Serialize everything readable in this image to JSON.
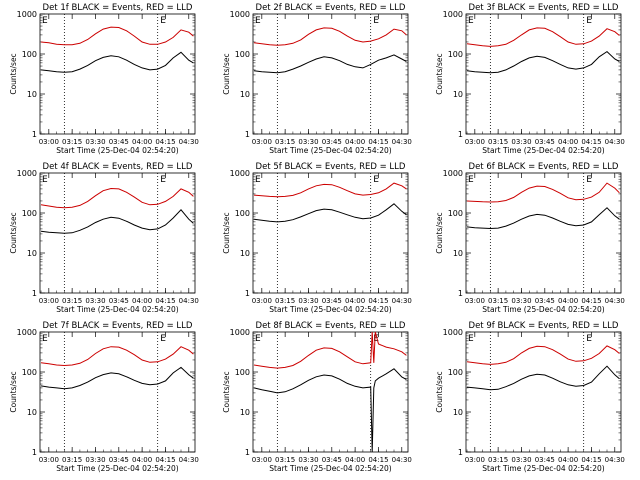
{
  "figure": {
    "x_tick_labels": [
      "03:00",
      "03:15",
      "03:30",
      "03:45",
      "04:00",
      "04:15",
      "04:30"
    ],
    "x_label": "Start Time (25-Dec-04 02:54:20)",
    "y_label": "Counts/sec",
    "y_tick_labels": [
      "1",
      "10",
      "100",
      "1000"
    ],
    "flag_labels": [
      "E",
      "E"
    ],
    "colors": {
      "events": "#000000",
      "lld": "#cc0000",
      "axes": "#000000",
      "background": "#ffffff"
    }
  },
  "chart_data": [
    {
      "type": "line",
      "title": "Det 1f BLACK = Events, RED = LLD",
      "xlabel": "Start Time (25-Dec-04 02:54:20)",
      "ylabel": "Counts/sec",
      "x_range": [
        "02:54:20",
        "04:34:00"
      ],
      "y_scale": "log",
      "ylim": [
        1,
        1000
      ],
      "x_ticks": [
        "03:00",
        "03:15",
        "03:30",
        "03:45",
        "04:00",
        "04:15",
        "04:30"
      ],
      "y_ticks": [
        1,
        10,
        100,
        1000
      ],
      "markers": [
        "03:10",
        "04:10"
      ],
      "flags": [
        {
          "label": "E",
          "at": "02:55"
        },
        {
          "label": "E",
          "at": "04:11"
        }
      ],
      "x": [
        "02:55",
        "03:00",
        "03:05",
        "03:10",
        "03:15",
        "03:20",
        "03:25",
        "03:30",
        "03:35",
        "03:40",
        "03:45",
        "03:50",
        "03:55",
        "04:00",
        "04:05",
        "04:10",
        "04:15",
        "04:20",
        "04:25",
        "04:30",
        "04:33"
      ],
      "series": [
        {
          "name": "Events",
          "color": "black",
          "values": [
            40,
            38,
            36,
            35,
            36,
            42,
            52,
            68,
            82,
            90,
            85,
            70,
            55,
            45,
            40,
            42,
            52,
            80,
            110,
            70,
            60
          ]
        },
        {
          "name": "LLD",
          "color": "red",
          "values": [
            200,
            190,
            175,
            170,
            170,
            185,
            230,
            320,
            420,
            470,
            460,
            380,
            280,
            200,
            175,
            175,
            200,
            260,
            400,
            350,
            280
          ]
        }
      ]
    },
    {
      "type": "line",
      "title": "Det 2f BLACK = Events, RED = LLD",
      "xlabel": "Start Time (25-Dec-04 02:54:20)",
      "ylabel": "Counts/sec",
      "x_range": [
        "02:54:20",
        "04:34:00"
      ],
      "y_scale": "log",
      "ylim": [
        1,
        1000
      ],
      "x_ticks": [
        "03:00",
        "03:15",
        "03:30",
        "03:45",
        "04:00",
        "04:15",
        "04:30"
      ],
      "y_ticks": [
        1,
        10,
        100,
        1000
      ],
      "markers": [
        "03:10",
        "04:10"
      ],
      "flags": [
        {
          "label": "E",
          "at": "02:55"
        },
        {
          "label": "E",
          "at": "04:11"
        }
      ],
      "x": [
        "02:55",
        "03:00",
        "03:05",
        "03:10",
        "03:15",
        "03:20",
        "03:25",
        "03:30",
        "03:35",
        "03:40",
        "03:45",
        "03:50",
        "03:55",
        "04:00",
        "04:05",
        "04:10",
        "04:15",
        "04:20",
        "04:25",
        "04:30",
        "04:33"
      ],
      "series": [
        {
          "name": "Events",
          "color": "black",
          "values": [
            38,
            36,
            35,
            34,
            36,
            42,
            50,
            62,
            75,
            85,
            80,
            68,
            55,
            48,
            45,
            55,
            70,
            80,
            95,
            75,
            65
          ]
        },
        {
          "name": "LLD",
          "color": "red",
          "values": [
            190,
            180,
            170,
            165,
            170,
            185,
            225,
            310,
            400,
            450,
            440,
            370,
            280,
            220,
            200,
            210,
            240,
            300,
            420,
            380,
            300
          ]
        }
      ]
    },
    {
      "type": "line",
      "title": "Det 3f BLACK = Events, RED = LLD",
      "xlabel": "Start Time (25-Dec-04 02:54:20)",
      "ylabel": "Counts/sec",
      "x_range": [
        "02:54:20",
        "04:34:00"
      ],
      "y_scale": "log",
      "ylim": [
        1,
        1000
      ],
      "x_ticks": [
        "03:00",
        "03:15",
        "03:30",
        "03:45",
        "04:00",
        "04:15",
        "04:30"
      ],
      "y_ticks": [
        1,
        10,
        100,
        1000
      ],
      "markers": [
        "03:10",
        "04:10"
      ],
      "flags": [
        {
          "label": "E",
          "at": "02:55"
        },
        {
          "label": "E",
          "at": "04:11"
        }
      ],
      "x": [
        "02:55",
        "03:00",
        "03:05",
        "03:10",
        "03:15",
        "03:20",
        "03:25",
        "03:30",
        "03:35",
        "03:40",
        "03:45",
        "03:50",
        "03:55",
        "04:00",
        "04:05",
        "04:10",
        "04:15",
        "04:20",
        "04:25",
        "04:30",
        "04:33"
      ],
      "series": [
        {
          "name": "Events",
          "color": "black",
          "values": [
            38,
            36,
            35,
            34,
            35,
            40,
            50,
            65,
            80,
            88,
            82,
            68,
            55,
            45,
            42,
            45,
            55,
            85,
            115,
            75,
            65
          ]
        },
        {
          "name": "LLD",
          "color": "red",
          "values": [
            180,
            170,
            160,
            155,
            160,
            175,
            220,
            300,
            400,
            450,
            440,
            360,
            270,
            200,
            175,
            180,
            210,
            280,
            430,
            360,
            290
          ]
        }
      ]
    },
    {
      "type": "line",
      "title": "Det 4f BLACK = Events, RED = LLD",
      "xlabel": "Start Time (25-Dec-04 02:54:20)",
      "ylabel": "Counts/sec",
      "x_range": [
        "02:54:20",
        "04:34:00"
      ],
      "y_scale": "log",
      "ylim": [
        1,
        1000
      ],
      "x_ticks": [
        "03:00",
        "03:15",
        "03:30",
        "03:45",
        "04:00",
        "04:15",
        "04:30"
      ],
      "y_ticks": [
        1,
        10,
        100,
        1000
      ],
      "markers": [
        "03:10",
        "04:10"
      ],
      "flags": [
        {
          "label": "E",
          "at": "02:55"
        },
        {
          "label": "E",
          "at": "04:11"
        }
      ],
      "x": [
        "02:55",
        "03:00",
        "03:05",
        "03:10",
        "03:15",
        "03:20",
        "03:25",
        "03:30",
        "03:35",
        "03:40",
        "03:45",
        "03:50",
        "03:55",
        "04:00",
        "04:05",
        "04:10",
        "04:15",
        "04:20",
        "04:25",
        "04:30",
        "04:33"
      ],
      "series": [
        {
          "name": "Events",
          "color": "black",
          "values": [
            35,
            33,
            32,
            31,
            32,
            37,
            45,
            58,
            70,
            78,
            74,
            62,
            50,
            42,
            38,
            40,
            50,
            75,
            120,
            70,
            55
          ]
        },
        {
          "name": "LLD",
          "color": "red",
          "values": [
            160,
            150,
            140,
            135,
            140,
            155,
            195,
            270,
            360,
            410,
            400,
            330,
            250,
            185,
            160,
            165,
            195,
            260,
            400,
            330,
            260
          ]
        }
      ]
    },
    {
      "type": "line",
      "title": "Det 5f BLACK = Events, RED = LLD",
      "xlabel": "Start Time (25-Dec-04 02:54:20)",
      "ylabel": "Counts/sec",
      "x_range": [
        "02:54:20",
        "04:34:00"
      ],
      "y_scale": "log",
      "ylim": [
        1,
        1000
      ],
      "x_ticks": [
        "03:00",
        "03:15",
        "03:30",
        "03:45",
        "04:00",
        "04:15",
        "04:30"
      ],
      "y_ticks": [
        1,
        10,
        100,
        1000
      ],
      "markers": [
        "03:10",
        "04:10"
      ],
      "flags": [
        {
          "label": "E",
          "at": "02:55"
        },
        {
          "label": "E",
          "at": "04:11"
        }
      ],
      "x": [
        "02:55",
        "03:00",
        "03:05",
        "03:10",
        "03:15",
        "03:20",
        "03:25",
        "03:30",
        "03:35",
        "03:40",
        "03:45",
        "03:50",
        "03:55",
        "04:00",
        "04:05",
        "04:10",
        "04:15",
        "04:20",
        "04:25",
        "04:30",
        "04:33"
      ],
      "series": [
        {
          "name": "Events",
          "color": "black",
          "values": [
            70,
            66,
            62,
            60,
            62,
            68,
            80,
            96,
            115,
            125,
            120,
            105,
            90,
            78,
            72,
            75,
            88,
            120,
            170,
            110,
            90
          ]
        },
        {
          "name": "LLD",
          "color": "red",
          "values": [
            280,
            270,
            260,
            255,
            260,
            275,
            320,
            400,
            480,
            520,
            510,
            440,
            360,
            300,
            280,
            290,
            320,
            400,
            560,
            480,
            400
          ]
        }
      ]
    },
    {
      "type": "line",
      "title": "Det 6f BLACK = Events, RED = LLD",
      "xlabel": "Start Time (25-Dec-04 02:54:20)",
      "ylabel": "Counts/sec",
      "x_range": [
        "02:54:20",
        "04:34:00"
      ],
      "y_scale": "log",
      "ylim": [
        1,
        1000
      ],
      "x_ticks": [
        "03:00",
        "03:15",
        "03:30",
        "03:45",
        "04:00",
        "04:15",
        "04:30"
      ],
      "y_ticks": [
        1,
        10,
        100,
        1000
      ],
      "markers": [
        "03:10",
        "04:10"
      ],
      "flags": [
        {
          "label": "E",
          "at": "02:55"
        },
        {
          "label": "E",
          "at": "04:11"
        }
      ],
      "x": [
        "02:55",
        "03:00",
        "03:05",
        "03:10",
        "03:15",
        "03:20",
        "03:25",
        "03:30",
        "03:35",
        "03:40",
        "03:45",
        "03:50",
        "03:55",
        "04:00",
        "04:05",
        "04:10",
        "04:15",
        "04:20",
        "04:25",
        "04:30",
        "04:33"
      ],
      "series": [
        {
          "name": "Events",
          "color": "black",
          "values": [
            45,
            43,
            42,
            41,
            42,
            47,
            56,
            70,
            84,
            92,
            88,
            75,
            62,
            52,
            48,
            50,
            60,
            90,
            135,
            85,
            70
          ]
        },
        {
          "name": "LLD",
          "color": "red",
          "values": [
            200,
            195,
            190,
            188,
            190,
            205,
            245,
            330,
            420,
            470,
            460,
            390,
            310,
            240,
            215,
            220,
            250,
            330,
            560,
            420,
            320
          ]
        }
      ]
    },
    {
      "type": "line",
      "title": "Det 7f BLACK = Events, RED = LLD",
      "xlabel": "Start Time (25-Dec-04 02:54:20)",
      "ylabel": "Counts/sec",
      "x_range": [
        "02:54:20",
        "04:34:00"
      ],
      "y_scale": "log",
      "ylim": [
        1,
        1000
      ],
      "x_ticks": [
        "03:00",
        "03:15",
        "03:30",
        "03:45",
        "04:00",
        "04:15",
        "04:30"
      ],
      "y_ticks": [
        1,
        10,
        100,
        1000
      ],
      "markers": [
        "03:10",
        "04:10"
      ],
      "flags": [
        {
          "label": "E",
          "at": "02:55"
        },
        {
          "label": "E",
          "at": "04:11"
        }
      ],
      "x": [
        "02:55",
        "03:00",
        "03:05",
        "03:10",
        "03:15",
        "03:20",
        "03:25",
        "03:30",
        "03:35",
        "03:40",
        "03:45",
        "03:50",
        "03:55",
        "04:00",
        "04:05",
        "04:10",
        "04:15",
        "04:20",
        "04:25",
        "04:30",
        "04:33"
      ],
      "series": [
        {
          "name": "Events",
          "color": "black",
          "values": [
            45,
            42,
            40,
            38,
            40,
            46,
            56,
            72,
            86,
            95,
            90,
            76,
            62,
            52,
            48,
            50,
            60,
            95,
            130,
            85,
            70
          ]
        },
        {
          "name": "LLD",
          "color": "red",
          "values": [
            170,
            160,
            150,
            145,
            150,
            165,
            205,
            290,
            380,
            430,
            420,
            350,
            270,
            200,
            175,
            180,
            210,
            280,
            430,
            350,
            280
          ]
        }
      ]
    },
    {
      "type": "line",
      "title": "Det 8f BLACK = Events, RED = LLD",
      "xlabel": "Start Time (25-Dec-04 02:54:20)",
      "ylabel": "Counts/sec",
      "x_range": [
        "02:54:20",
        "04:34:00"
      ],
      "y_scale": "log",
      "ylim": [
        1,
        1000
      ],
      "x_ticks": [
        "03:00",
        "03:15",
        "03:30",
        "03:45",
        "04:00",
        "04:15",
        "04:30"
      ],
      "y_ticks": [
        1,
        10,
        100,
        1000
      ],
      "markers": [
        "03:10",
        "04:10"
      ],
      "flags": [
        {
          "label": "E",
          "at": "02:55"
        },
        {
          "label": "E",
          "at": "04:11"
        }
      ],
      "x": [
        "02:55",
        "03:00",
        "03:05",
        "03:10",
        "03:15",
        "03:20",
        "03:25",
        "03:30",
        "03:35",
        "03:40",
        "03:45",
        "03:50",
        "03:55",
        "04:00",
        "04:05",
        "04:10",
        "04:11",
        "04:12",
        "04:13",
        "04:15",
        "04:20",
        "04:25",
        "04:30",
        "04:33"
      ],
      "series": [
        {
          "name": "Events",
          "color": "black",
          "values": [
            40,
            36,
            33,
            30,
            32,
            38,
            48,
            62,
            76,
            84,
            80,
            66,
            52,
            44,
            40,
            42,
            1,
            40,
            60,
            70,
            90,
            120,
            75,
            65
          ]
        },
        {
          "name": "LLD",
          "color": "red",
          "values": [
            150,
            140,
            130,
            125,
            130,
            145,
            185,
            260,
            350,
            400,
            390,
            320,
            240,
            180,
            160,
            170,
            1000,
            170,
            1000,
            500,
            420,
            380,
            320,
            260
          ]
        }
      ]
    },
    {
      "type": "line",
      "title": "Det 9f BLACK = Events, RED = LLD",
      "xlabel": "Start Time (25-Dec-04 02:54:20)",
      "ylabel": "Counts/sec",
      "x_range": [
        "02:54:20",
        "04:34:00"
      ],
      "y_scale": "log",
      "ylim": [
        1,
        1000
      ],
      "x_ticks": [
        "03:00",
        "03:15",
        "03:30",
        "03:45",
        "04:00",
        "04:15",
        "04:30"
      ],
      "y_ticks": [
        1,
        10,
        100,
        1000
      ],
      "markers": [
        "03:10",
        "04:10"
      ],
      "flags": [
        {
          "label": "E",
          "at": "02:55"
        },
        {
          "label": "E",
          "at": "04:11"
        }
      ],
      "x": [
        "02:55",
        "03:00",
        "03:05",
        "03:10",
        "03:15",
        "03:20",
        "03:25",
        "03:30",
        "03:35",
        "03:40",
        "03:45",
        "03:50",
        "03:55",
        "04:00",
        "04:05",
        "04:10",
        "04:15",
        "04:20",
        "04:25",
        "04:30",
        "04:33"
      ],
      "series": [
        {
          "name": "Events",
          "color": "black",
          "values": [
            42,
            40,
            38,
            36,
            37,
            43,
            52,
            66,
            80,
            88,
            84,
            70,
            57,
            48,
            44,
            46,
            56,
            90,
            140,
            85,
            68
          ]
        },
        {
          "name": "LLD",
          "color": "red",
          "values": [
            180,
            170,
            160,
            155,
            160,
            175,
            215,
            300,
            390,
            440,
            430,
            360,
            280,
            210,
            185,
            190,
            220,
            290,
            450,
            360,
            290
          ]
        }
      ]
    }
  ]
}
